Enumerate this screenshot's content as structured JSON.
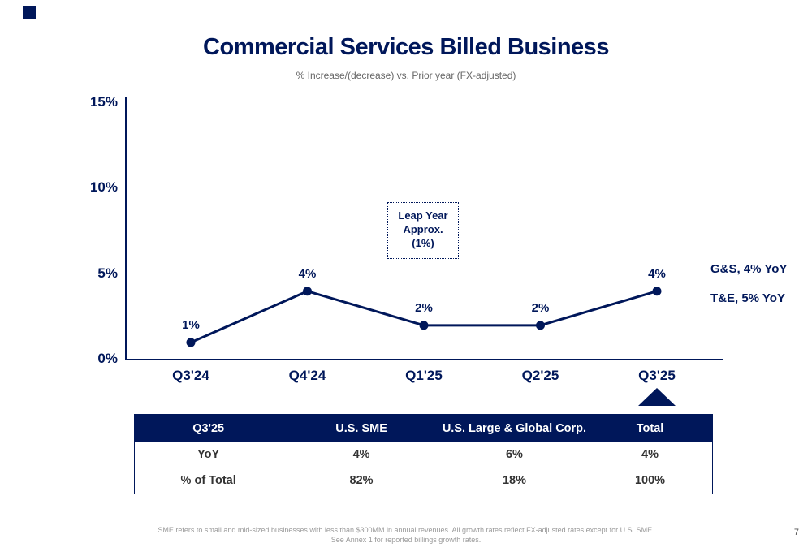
{
  "logo": {
    "name": "american-express-blue-box"
  },
  "title": "Commercial Services Billed Business",
  "subtitle": "% Increase/(decrease) vs. Prior year (FX-adjusted)",
  "chart_data": {
    "type": "line",
    "categories": [
      "Q3'24",
      "Q4'24",
      "Q1'25",
      "Q2'25",
      "Q3'25"
    ],
    "values": [
      1,
      4,
      2,
      2,
      4
    ],
    "point_labels": [
      "1%",
      "4%",
      "2%",
      "2%",
      "4%"
    ],
    "title": "Commercial Services Billed Business",
    "xlabel": "",
    "ylabel": "",
    "ylim": [
      0,
      15
    ],
    "yticks": [
      0,
      5,
      10,
      15
    ],
    "ytick_labels": [
      "0%",
      "5%",
      "10%",
      "15%"
    ],
    "grid": "off",
    "line_color": "#00175a",
    "annotation": {
      "text": "Leap Year\nApprox.\n(1%)",
      "attached_category": "Q1'25"
    },
    "side_annotations": [
      "G&S, 4% YoY",
      "T&E, 5% YoY"
    ]
  },
  "table": {
    "headers": [
      "Q3'25",
      "U.S. SME",
      "U.S. Large & Global Corp.",
      "Total"
    ],
    "rows": [
      [
        "YoY",
        "4%",
        "6%",
        "4%"
      ],
      [
        "% of Total",
        "82%",
        "18%",
        "100%"
      ]
    ],
    "header_bg": "#00175a"
  },
  "footnote_line1": "SME refers to small and mid-sized businesses with less than $300MM in annual revenues. All growth rates reflect FX-adjusted rates except for U.S. SME.",
  "footnote_line2": "See Annex 1 for reported billings growth rates.",
  "page_number": "7"
}
